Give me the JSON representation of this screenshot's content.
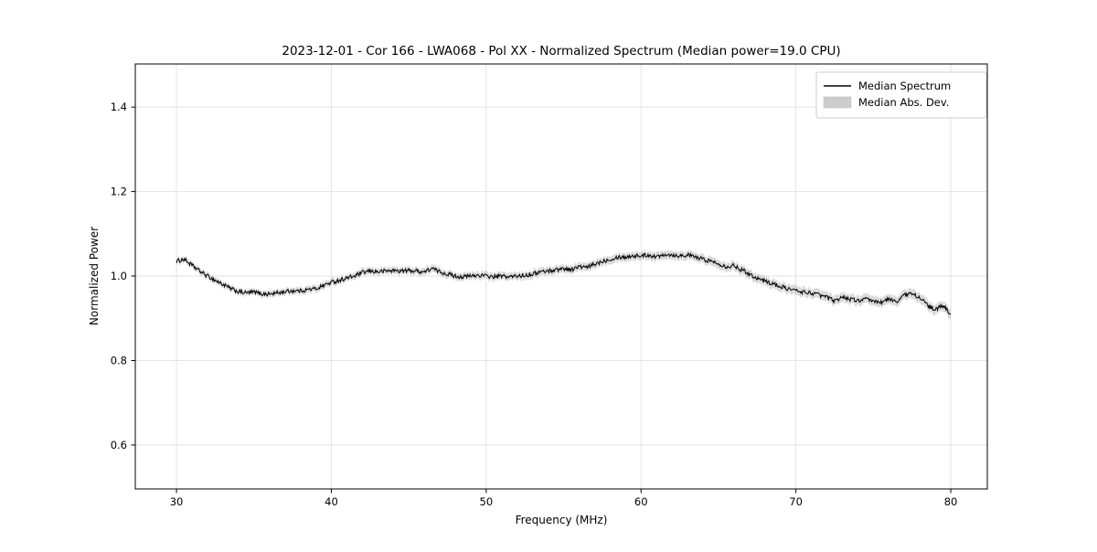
{
  "figure": {
    "background": "#ffffff"
  },
  "chart_data": {
    "type": "line",
    "title": "2023-12-01 - Cor 166 - LWA068 - Pol XX - Normalized Spectrum (Median power=19.0 CPU)",
    "xlabel": "Frequency (MHz)",
    "ylabel": "Normalized Power",
    "xlim": [
      27.34,
      82.36
    ],
    "ylim": [
      0.496,
      1.502
    ],
    "x_ticks": [
      30,
      40,
      50,
      60,
      70,
      80
    ],
    "y_ticks": [
      0.6,
      0.8,
      1.0,
      1.2,
      1.4
    ],
    "grid": true,
    "line_color": "#000000",
    "band_color": "#bbbbbb",
    "legend": {
      "position": "upper right",
      "entries": [
        {
          "label": "Median Spectrum",
          "type": "line",
          "color": "#000000"
        },
        {
          "label": "Median Abs. Dev.",
          "type": "band",
          "color": "#cccccc"
        }
      ]
    },
    "series": [
      {
        "name": "Median Spectrum",
        "x_start": 30.0,
        "x_step": 0.5,
        "y": [
          1.035,
          1.04,
          1.025,
          1.012,
          1.0,
          0.99,
          0.98,
          0.97,
          0.963,
          0.96,
          0.962,
          0.958,
          0.957,
          0.96,
          0.963,
          0.965,
          0.965,
          0.968,
          0.97,
          0.978,
          0.985,
          0.99,
          0.995,
          1.0,
          1.008,
          1.012,
          1.01,
          1.012,
          1.013,
          1.012,
          1.013,
          1.012,
          1.01,
          1.018,
          1.01,
          1.005,
          1.0,
          0.998,
          1.0,
          1.002,
          1.0,
          0.998,
          1.0,
          0.998,
          1.0,
          1.002,
          1.005,
          1.01,
          1.012,
          1.015,
          1.018,
          1.015,
          1.022,
          1.02,
          1.028,
          1.035,
          1.04,
          1.045,
          1.045,
          1.048,
          1.048,
          1.05,
          1.045,
          1.052,
          1.05,
          1.048,
          1.05,
          1.045,
          1.04,
          1.035,
          1.03,
          1.022,
          1.025,
          1.015,
          1.005,
          0.995,
          0.988,
          0.982,
          0.975,
          0.97,
          0.965,
          0.962,
          0.96,
          0.955,
          0.95,
          0.94,
          0.952,
          0.945,
          0.942,
          0.945,
          0.94,
          0.938,
          0.945,
          0.94,
          0.955,
          0.958,
          0.95,
          0.93,
          0.92,
          0.93,
          0.91
        ]
      }
    ],
    "band": {
      "name": "Median Abs. Dev.",
      "halfwidth_start": 0.007,
      "halfwidth_end": 0.012
    }
  }
}
